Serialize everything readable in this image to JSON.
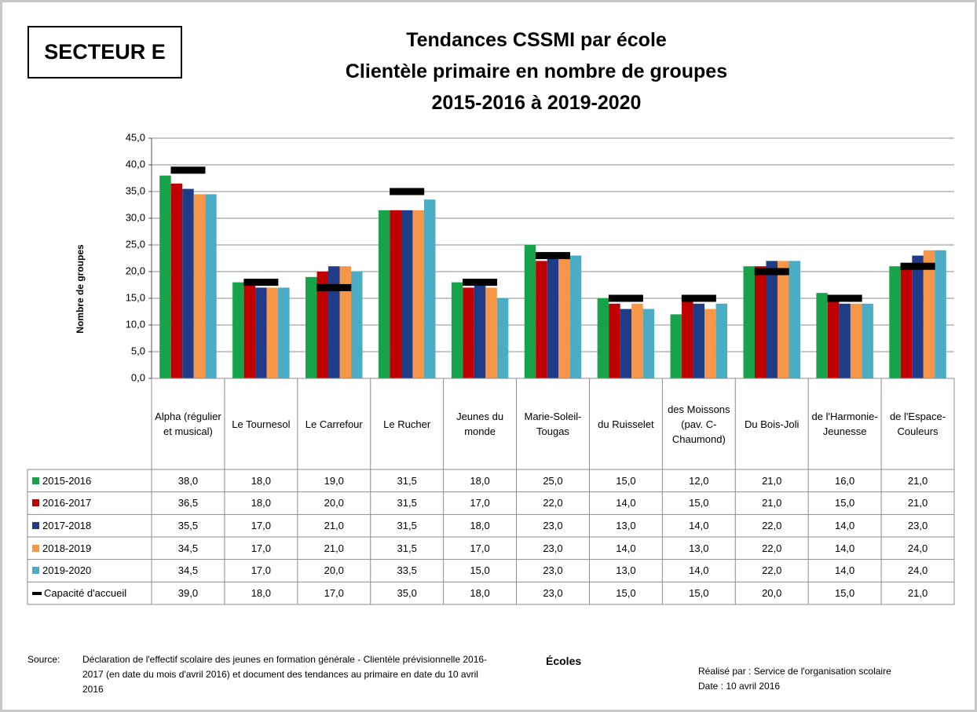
{
  "header_box": "SECTEUR E",
  "chart_data": {
    "type": "bar",
    "title": [
      "Tendances CSSMI par école",
      "Clientèle primaire en nombre de groupes",
      "2015-2016 à 2019-2020"
    ],
    "y_label": "Nombre de groupes",
    "x_label": "Écoles",
    "categories": [
      "Alpha (régulier et musical)",
      "Le Tournesol",
      "Le Carrefour",
      "Le Rucher",
      "Jeunes du monde",
      "Marie-Soleil-Tougas",
      "du Ruisselet",
      "des Moissons (pav. C-Chaumond)",
      "Du Bois-Joli",
      "de l'Harmonie-Jeunesse",
      "de l'Espace-Couleurs"
    ],
    "ylim": [
      0,
      45
    ],
    "yticks": [
      {
        "value": 0,
        "label": "0,0"
      },
      {
        "value": 5,
        "label": "5,0"
      },
      {
        "value": 10,
        "label": "10,0"
      },
      {
        "value": 15,
        "label": "15,0"
      },
      {
        "value": 20,
        "label": "20,0"
      },
      {
        "value": 25,
        "label": "25,0"
      },
      {
        "value": 30,
        "label": "30,0"
      },
      {
        "value": 35,
        "label": "35,0"
      },
      {
        "value": 40,
        "label": "40,0"
      },
      {
        "value": 45,
        "label": "45,0"
      }
    ],
    "grid": true,
    "series": [
      {
        "name": "2015-2016",
        "color": "#16a34a",
        "values": [
          38,
          18,
          19,
          31.5,
          18,
          25,
          15,
          12,
          21,
          16,
          21
        ],
        "value_labels": [
          "38,0",
          "18,0",
          "19,0",
          "31,5",
          "18,0",
          "25,0",
          "15,0",
          "12,0",
          "21,0",
          "16,0",
          "21,0"
        ]
      },
      {
        "name": "2016-2017",
        "color": "#c00000",
        "values": [
          36.5,
          18,
          20,
          31.5,
          17,
          22,
          14,
          15,
          21,
          15,
          21
        ],
        "value_labels": [
          "36,5",
          "18,0",
          "20,0",
          "31,5",
          "17,0",
          "22,0",
          "14,0",
          "15,0",
          "21,0",
          "15,0",
          "21,0"
        ]
      },
      {
        "name": "2017-2018",
        "color": "#1f3c88",
        "values": [
          35.5,
          17,
          21,
          31.5,
          18,
          23,
          13,
          14,
          22,
          14,
          23
        ],
        "value_labels": [
          "35,5",
          "17,0",
          "21,0",
          "31,5",
          "18,0",
          "23,0",
          "13,0",
          "14,0",
          "22,0",
          "14,0",
          "23,0"
        ]
      },
      {
        "name": "2018-2019",
        "color": "#f79646",
        "values": [
          34.5,
          17,
          21,
          31.5,
          17,
          23,
          14,
          13,
          22,
          14,
          24
        ],
        "value_labels": [
          "34,5",
          "17,0",
          "21,0",
          "31,5",
          "17,0",
          "23,0",
          "14,0",
          "13,0",
          "22,0",
          "14,0",
          "24,0"
        ]
      },
      {
        "name": "2019-2020",
        "color": "#4bacc6",
        "values": [
          34.5,
          17,
          20,
          33.5,
          15,
          23,
          13,
          14,
          22,
          14,
          24
        ],
        "value_labels": [
          "34,5",
          "17,0",
          "20,0",
          "33,5",
          "15,0",
          "23,0",
          "13,0",
          "14,0",
          "22,0",
          "14,0",
          "24,0"
        ]
      },
      {
        "name": "Capacité d'accueil",
        "color": "#000000",
        "style": "marker",
        "values": [
          39,
          18,
          17,
          35,
          18,
          23,
          15,
          15,
          20,
          15,
          21
        ],
        "value_labels": [
          "39,0",
          "18,0",
          "17,0",
          "35,0",
          "18,0",
          "23,0",
          "15,0",
          "15,0",
          "20,0",
          "15,0",
          "21,0"
        ]
      }
    ]
  },
  "footer": {
    "source_label": "Source:",
    "source": "Déclaration de l'effectif scolaire des jeunes en formation générale - Clientèle prévisionnelle 2016-2017 (en date du mois d'avril 2016) et document des tendances au primaire en date du 10 avril 2016",
    "made_by": "Réalisé par : Service de l'organisation scolaire",
    "date": "Date : 10 avril 2016"
  }
}
